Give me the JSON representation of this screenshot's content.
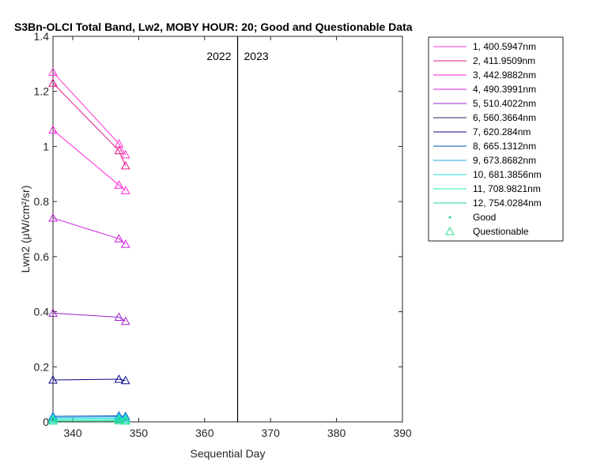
{
  "chart_data": {
    "type": "line",
    "title": "S3Bn-OLCI Total Band, Lw2, MOBY HOUR: 20;  Good and Questionable Data",
    "xlabel": "Sequential Day",
    "ylabel": "Lwn2 (μW/cm²/sr)",
    "xlim": [
      337,
      390
    ],
    "ylim": [
      0,
      1.4
    ],
    "xticks": [
      340,
      350,
      360,
      370,
      380,
      390
    ],
    "yticks": [
      0,
      0.2,
      0.4,
      0.6,
      0.8,
      1,
      1.2,
      1.4
    ],
    "x": [
      337,
      347,
      348
    ],
    "series": [
      {
        "name": "1, 400.5947nm",
        "color": "#ff33cc",
        "values": [
          1.27,
          1.01,
          0.97
        ]
      },
      {
        "name": "2, 411.9509nm",
        "color": "#e6198c",
        "values": [
          1.23,
          0.985,
          0.93
        ]
      },
      {
        "name": "3, 442.9882nm",
        "color": "#ff22dd",
        "values": [
          1.06,
          0.86,
          0.84
        ]
      },
      {
        "name": "4, 490.3991nm",
        "color": "#cc22dd",
        "values": [
          0.74,
          0.665,
          0.645
        ]
      },
      {
        "name": "5, 510.4022nm",
        "color": "#9922cc",
        "values": [
          0.395,
          0.38,
          0.365
        ]
      },
      {
        "name": "6, 560.3664nm",
        "color": "#3a1a66",
        "values": [
          null,
          null,
          null
        ]
      },
      {
        "name": "7,  620.284nm",
        "color": "#0a0a88",
        "values": [
          0.152,
          0.155,
          0.15
        ]
      },
      {
        "name": "8, 665.1312nm",
        "color": "#0055bb",
        "values": [
          0.02,
          0.022,
          0.02
        ]
      },
      {
        "name": "9, 673.8682nm",
        "color": "#2aa8e0",
        "values": [
          0.016,
          0.018,
          0.016
        ]
      },
      {
        "name": "10, 681.3856nm",
        "color": "#22dddd",
        "values": [
          0.012,
          0.013,
          0.012
        ]
      },
      {
        "name": "11, 708.9821nm",
        "color": "#22eebb",
        "values": [
          0.007,
          0.008,
          0.007
        ]
      },
      {
        "name": "12, 754.0284nm",
        "color": "#22dd88",
        "values": [
          0.003,
          0.004,
          0.003
        ]
      }
    ],
    "quality": "Questionable",
    "legend": {
      "position": "outside-right",
      "good_label": "Good",
      "questionable_label": "Questionable"
    },
    "year_divider": {
      "x": 365,
      "left_label": "2022",
      "right_label": "2023"
    },
    "grid": false
  }
}
